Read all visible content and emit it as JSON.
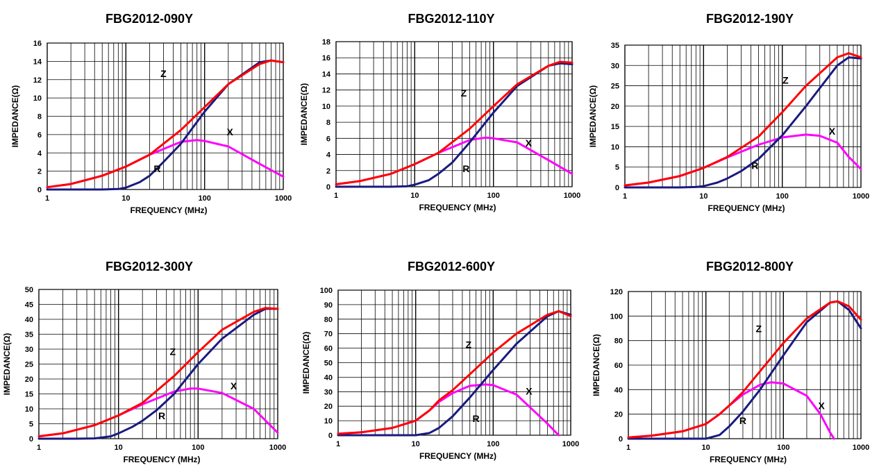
{
  "colors": {
    "Z": "#ff0000",
    "R": "#1a1a80",
    "X": "#ff00ff",
    "grid": "#000000",
    "text": "#000000"
  },
  "chart_data": [
    {
      "type": "line",
      "title": "FBG2012-090Y",
      "xlabel": "FREQUENCY (MHz)",
      "ylabel": "IMPEDANCE(Ω)",
      "xscale": "log",
      "xlim": [
        1,
        1000
      ],
      "ylim": [
        0,
        16
      ],
      "yticks": [
        0,
        2,
        4,
        6,
        8,
        10,
        12,
        14,
        16
      ],
      "xticks": [
        "1",
        "10",
        "100",
        "1000"
      ],
      "grid": true,
      "series": [
        {
          "name": "Z",
          "x": [
            1,
            2,
            5,
            10,
            20,
            50,
            100,
            200,
            500,
            700,
            1000
          ],
          "y": [
            0.25,
            0.6,
            1.5,
            2.5,
            3.8,
            6.5,
            9.0,
            11.5,
            13.7,
            14.1,
            13.9
          ]
        },
        {
          "name": "R",
          "x": [
            1,
            5,
            8,
            10,
            15,
            20,
            30,
            50,
            100,
            200,
            500,
            700,
            1000
          ],
          "y": [
            0,
            0,
            0.05,
            0.2,
            0.8,
            1.5,
            3.0,
            5.0,
            8.5,
            11.5,
            13.9,
            14.1,
            13.9
          ]
        },
        {
          "name": "X",
          "x": [
            1,
            2,
            5,
            10,
            20,
            50,
            80,
            100,
            200,
            500,
            1000
          ],
          "y": [
            0.25,
            0.6,
            1.5,
            2.5,
            3.8,
            5.2,
            5.4,
            5.3,
            4.7,
            2.8,
            1.4
          ]
        }
      ],
      "curve_labels": [
        {
          "text": "Z",
          "x": 30,
          "y": 12.3
        },
        {
          "text": "X",
          "x": 210,
          "y": 5.9
        },
        {
          "text": "R",
          "x": 25,
          "y": 1.9
        }
      ]
    },
    {
      "type": "line",
      "title": "FBG2012-110Y",
      "xlabel": "FREQUENCY (MHz)",
      "ylabel": "IMPEDANCE(Ω)",
      "xscale": "log",
      "xlim": [
        1,
        1000
      ],
      "ylim": [
        0,
        18
      ],
      "yticks": [
        0,
        2,
        4,
        6,
        8,
        10,
        12,
        14,
        16,
        18
      ],
      "xticks": [
        "1",
        "10",
        "100",
        "1000"
      ],
      "grid": true,
      "series": [
        {
          "name": "Z",
          "x": [
            1,
            2,
            5,
            10,
            20,
            50,
            100,
            200,
            500,
            700,
            1000
          ],
          "y": [
            0.3,
            0.7,
            1.6,
            2.8,
            4.2,
            7.2,
            10.0,
            12.7,
            15.0,
            15.5,
            15.4
          ]
        },
        {
          "name": "R",
          "x": [
            1,
            5,
            8,
            10,
            15,
            20,
            30,
            50,
            100,
            200,
            500,
            700,
            1000
          ],
          "y": [
            0,
            0,
            0.05,
            0.25,
            0.8,
            1.6,
            3.0,
            5.5,
            9.2,
            12.5,
            15.0,
            15.3,
            15.2
          ]
        },
        {
          "name": "X",
          "x": [
            1,
            2,
            5,
            10,
            20,
            50,
            80,
            100,
            200,
            500,
            1000
          ],
          "y": [
            0.3,
            0.7,
            1.6,
            2.8,
            4.2,
            5.8,
            6.1,
            6.0,
            5.5,
            3.3,
            1.6
          ]
        }
      ],
      "curve_labels": [
        {
          "text": "Z",
          "x": 42,
          "y": 11.2
        },
        {
          "text": "X",
          "x": 280,
          "y": 5.0
        },
        {
          "text": "R",
          "x": 45,
          "y": 1.8
        }
      ]
    },
    {
      "type": "line",
      "title": "FBG2012-190Y",
      "xlabel": "FREQUENCY (MHz)",
      "ylabel": "IMPEDANCE(Ω)",
      "xscale": "log",
      "xlim": [
        1,
        1000
      ],
      "ylim": [
        0,
        35
      ],
      "yticks": [
        0,
        5,
        10,
        15,
        20,
        25,
        30,
        35
      ],
      "xticks": [
        "1",
        "10",
        "100",
        "1000"
      ],
      "grid": true,
      "series": [
        {
          "name": "Z",
          "x": [
            1,
            2,
            5,
            10,
            20,
            50,
            100,
            200,
            500,
            700,
            1000
          ],
          "y": [
            0.5,
            1.2,
            2.8,
            4.8,
            7.5,
            12.5,
            18.5,
            25.0,
            32.0,
            33.0,
            32.0
          ]
        },
        {
          "name": "R",
          "x": [
            1,
            5,
            8,
            10,
            15,
            20,
            30,
            50,
            100,
            200,
            500,
            700,
            1000
          ],
          "y": [
            0,
            0,
            0.1,
            0.3,
            1.2,
            2.2,
            4.0,
            7.0,
            12.8,
            20.0,
            30.0,
            32.0,
            31.7
          ]
        },
        {
          "name": "X",
          "x": [
            1,
            2,
            5,
            10,
            20,
            50,
            100,
            200,
            300,
            500,
            700,
            1000
          ],
          "y": [
            0.5,
            1.2,
            2.8,
            4.8,
            7.4,
            10.5,
            12.3,
            13.0,
            12.7,
            11.0,
            7.5,
            4.5
          ]
        }
      ],
      "curve_labels": [
        {
          "text": "Z",
          "x": 110,
          "y": 25.5
        },
        {
          "text": "X",
          "x": 430,
          "y": 13.0
        },
        {
          "text": "R",
          "x": 45,
          "y": 4.5
        }
      ]
    },
    {
      "type": "line",
      "title": "FBG2012-300Y",
      "xlabel": "FREQUENCY (MHz)",
      "ylabel": "IMPEDANCE(Ω)",
      "xscale": "log",
      "xlim": [
        1,
        1000
      ],
      "ylim": [
        0,
        50
      ],
      "yticks": [
        0,
        5,
        10,
        15,
        20,
        25,
        30,
        35,
        40,
        45,
        50
      ],
      "xticks": [
        "1",
        "10",
        "100",
        "1000"
      ],
      "grid": true,
      "series": [
        {
          "name": "Z",
          "x": [
            1,
            2,
            5,
            10,
            20,
            50,
            100,
            200,
            500,
            700,
            1000
          ],
          "y": [
            0.8,
            1.8,
            4.5,
            7.8,
            12.0,
            21.0,
            29.0,
            36.5,
            42.5,
            43.8,
            43.5
          ]
        },
        {
          "name": "R",
          "x": [
            1,
            3,
            5,
            8,
            10,
            15,
            20,
            30,
            50,
            100,
            200,
            500,
            700,
            1000
          ],
          "y": [
            0,
            0,
            0.1,
            0.8,
            1.8,
            4.0,
            6.0,
            9.5,
            15.0,
            25.0,
            33.5,
            41.5,
            43.5,
            43.5
          ]
        },
        {
          "name": "X",
          "x": [
            1,
            2,
            5,
            10,
            20,
            50,
            80,
            100,
            200,
            500,
            1000
          ],
          "y": [
            0.8,
            1.8,
            4.5,
            7.8,
            11.5,
            15.8,
            16.8,
            16.8,
            15.3,
            10.0,
            2.0
          ]
        }
      ],
      "curve_labels": [
        {
          "text": "Z",
          "x": 48,
          "y": 28.0
        },
        {
          "text": "X",
          "x": 280,
          "y": 16.5
        },
        {
          "text": "R",
          "x": 35,
          "y": 6.5
        }
      ]
    },
    {
      "type": "line",
      "title": "FBG2012-600Y",
      "xlabel": "FREQUENCY (MHz)",
      "ylabel": "IMPEDANCE(Ω)",
      "xscale": "log",
      "xlim": [
        1,
        1000
      ],
      "ylim": [
        0,
        100
      ],
      "yticks": [
        0,
        10,
        20,
        30,
        40,
        50,
        60,
        70,
        80,
        90,
        100
      ],
      "xticks": [
        "1",
        "10",
        "100",
        "1000"
      ],
      "grid": true,
      "series": [
        {
          "name": "Z",
          "x": [
            1,
            2,
            5,
            10,
            15,
            20,
            30,
            50,
            100,
            200,
            500,
            700,
            1000
          ],
          "y": [
            1,
            2,
            5,
            10,
            17,
            24,
            31,
            42,
            57,
            70,
            83,
            85.5,
            82
          ]
        },
        {
          "name": "R",
          "x": [
            1,
            10,
            15,
            20,
            30,
            50,
            100,
            200,
            500,
            700,
            1000
          ],
          "y": [
            0,
            0,
            1.5,
            5,
            13,
            26,
            45,
            63,
            82,
            85.5,
            83
          ]
        },
        {
          "name": "X",
          "x": [
            1,
            2,
            5,
            10,
            15,
            20,
            30,
            50,
            80,
            100,
            200,
            500,
            700
          ],
          "y": [
            1,
            2,
            5,
            10,
            17,
            23,
            29,
            34,
            35,
            34.5,
            28,
            8,
            0
          ]
        }
      ],
      "curve_labels": [
        {
          "text": "Z",
          "x": 48,
          "y": 60.0
        },
        {
          "text": "X",
          "x": 290,
          "y": 28.0
        },
        {
          "text": "R",
          "x": 60,
          "y": 9.0
        }
      ]
    },
    {
      "type": "line",
      "title": "FBG2012-800Y",
      "xlabel": "FREQUENCY (MHz)",
      "ylabel": "IMPEDANCE(Ω)",
      "xscale": "log",
      "xlim": [
        1,
        1000
      ],
      "ylim": [
        0,
        120
      ],
      "yticks": [
        0,
        20,
        40,
        60,
        80,
        100,
        120
      ],
      "xticks": [
        "1",
        "10",
        "100",
        "1000"
      ],
      "grid": true,
      "series": [
        {
          "name": "Z",
          "x": [
            1,
            2,
            5,
            10,
            15,
            20,
            30,
            50,
            100,
            200,
            400,
            500,
            700,
            1000
          ],
          "y": [
            1,
            2.5,
            6,
            12,
            20,
            27,
            38,
            55,
            78,
            98,
            111,
            112,
            108,
            97
          ]
        },
        {
          "name": "R",
          "x": [
            1,
            10,
            15,
            20,
            30,
            50,
            100,
            200,
            400,
            500,
            700,
            1000
          ],
          "y": [
            0,
            0,
            3,
            10,
            22,
            40,
            68,
            95,
            111,
            112,
            105,
            90
          ]
        },
        {
          "name": "X",
          "x": [
            1,
            2,
            5,
            10,
            15,
            20,
            30,
            50,
            70,
            100,
            200,
            300,
            400,
            450
          ],
          "y": [
            1,
            2.5,
            6,
            12,
            20,
            27,
            36,
            44,
            46,
            45,
            35,
            20,
            5,
            0
          ]
        }
      ],
      "curve_labels": [
        {
          "text": "Z",
          "x": 48,
          "y": 87.0
        },
        {
          "text": "X",
          "x": 310,
          "y": 24.0
        },
        {
          "text": "R",
          "x": 30,
          "y": 12.0
        }
      ]
    }
  ]
}
